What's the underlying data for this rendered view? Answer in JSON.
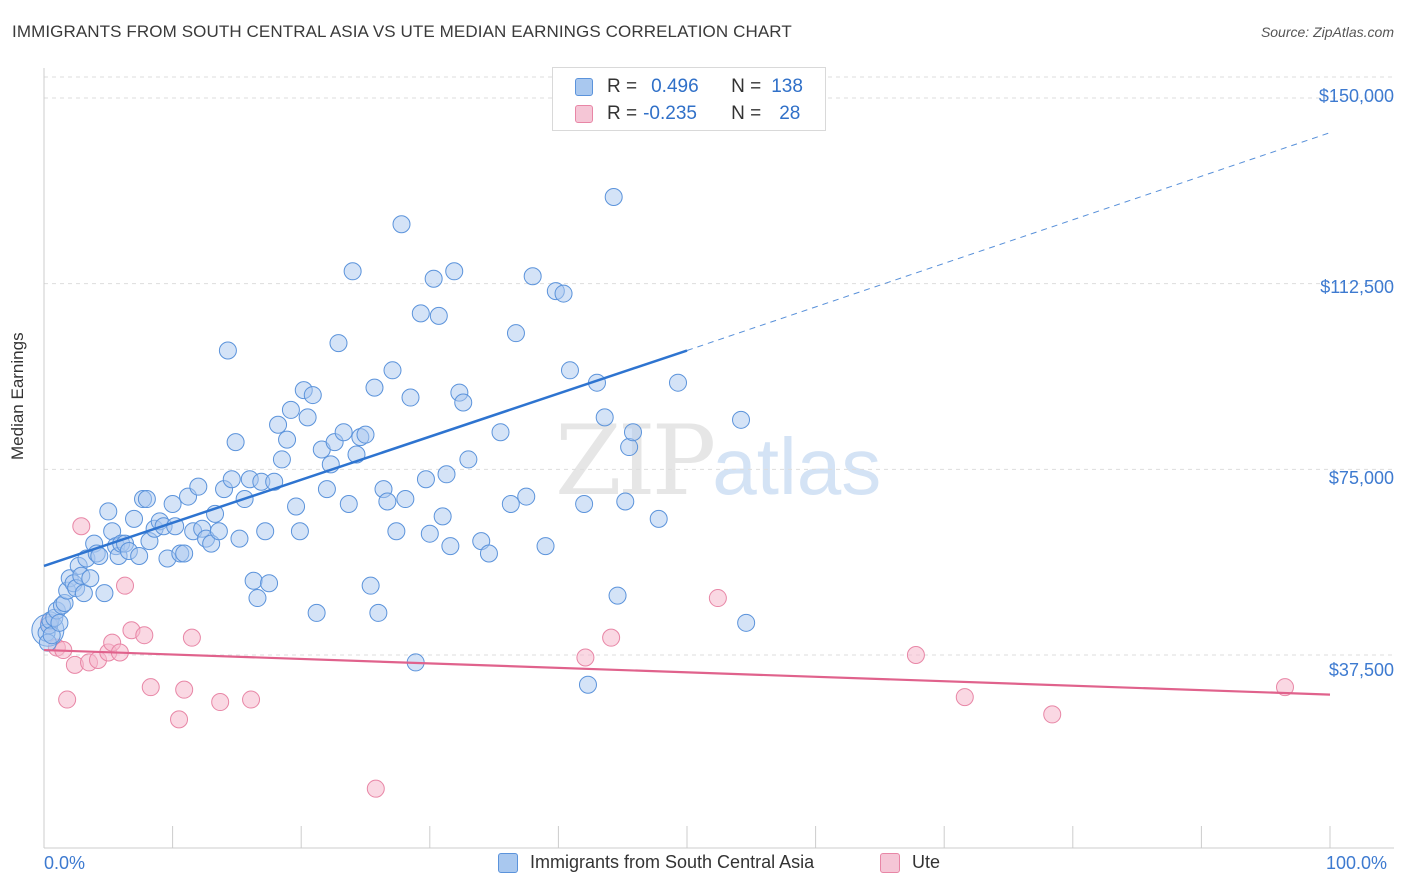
{
  "title": "IMMIGRANTS FROM SOUTH CENTRAL ASIA VS UTE MEDIAN EARNINGS CORRELATION CHART",
  "source": "Source: ZipAtlas.com",
  "watermark": {
    "zip": "ZIP",
    "atlas": "atlas"
  },
  "legend_top": {
    "rows": [
      {
        "r_label": "R =",
        "r_value": "0.496",
        "n_label": "N =",
        "n_value": "138"
      },
      {
        "r_label": "R =",
        "r_value": "-0.235",
        "n_label": "N =",
        "n_value": "28"
      }
    ]
  },
  "colors": {
    "blue_fill": "#a9c8ef",
    "blue_stroke": "#5b93db",
    "blue_line": "#2e74d0",
    "pink_fill": "#f5b8cc",
    "pink_stroke": "#e886a6",
    "pink_line": "#e0628c",
    "axis_text": "#3d7ad0",
    "grid": "#dddddd"
  },
  "chart_data": {
    "type": "scatter",
    "title": "IMMIGRANTS FROM SOUTH CENTRAL ASIA VS UTE MEDIAN EARNINGS CORRELATION CHART",
    "xlabel": "",
    "ylabel": "Median Earnings",
    "xlim": [
      0,
      100
    ],
    "ylim": [
      0,
      157500
    ],
    "x_tick_labels": [
      "0.0%",
      "100.0%"
    ],
    "y_ticks": [
      37500,
      75000,
      112500,
      150000
    ],
    "y_tick_labels": [
      "$37,500",
      "$75,000",
      "$112,500",
      "$150,000"
    ],
    "grid": true,
    "legend_position": "bottom",
    "series": [
      {
        "name": "Immigrants from South Central Asia",
        "color": "#a9c8ef",
        "R": 0.496,
        "N": 138,
        "trend": {
          "x": [
            0,
            50
          ],
          "y": [
            55500,
            99000
          ],
          "dashed_to": [
            100,
            143000
          ]
        },
        "points": [
          [
            0.2,
            42000
          ],
          [
            0.3,
            40000
          ],
          [
            0.4,
            43500
          ],
          [
            0.5,
            44500
          ],
          [
            0.6,
            41500
          ],
          [
            0.8,
            45000
          ],
          [
            1.0,
            46500
          ],
          [
            1.2,
            44000
          ],
          [
            1.4,
            47500
          ],
          [
            1.6,
            48000
          ],
          [
            1.8,
            50500
          ],
          [
            2.0,
            53000
          ],
          [
            2.3,
            52000
          ],
          [
            2.5,
            51000
          ],
          [
            2.7,
            55500
          ],
          [
            2.9,
            53500
          ],
          [
            3.1,
            50000
          ],
          [
            3.3,
            57000
          ],
          [
            3.6,
            53000
          ],
          [
            3.9,
            60000
          ],
          [
            4.1,
            58000
          ],
          [
            4.3,
            57500
          ],
          [
            4.7,
            50000
          ],
          [
            5.0,
            66500
          ],
          [
            5.3,
            62500
          ],
          [
            5.6,
            59500
          ],
          [
            5.8,
            57500
          ],
          [
            6.0,
            60000
          ],
          [
            6.3,
            60000
          ],
          [
            6.6,
            58500
          ],
          [
            7.0,
            65000
          ],
          [
            7.4,
            57500
          ],
          [
            7.7,
            69000
          ],
          [
            8.0,
            69000
          ],
          [
            8.2,
            60500
          ],
          [
            8.6,
            63000
          ],
          [
            9.0,
            64500
          ],
          [
            9.3,
            63500
          ],
          [
            9.6,
            57000
          ],
          [
            10.0,
            68000
          ],
          [
            10.2,
            63500
          ],
          [
            10.6,
            58000
          ],
          [
            10.9,
            58000
          ],
          [
            11.2,
            69500
          ],
          [
            11.6,
            62500
          ],
          [
            12.0,
            71500
          ],
          [
            12.3,
            63000
          ],
          [
            12.6,
            61000
          ],
          [
            13.0,
            60000
          ],
          [
            13.3,
            66000
          ],
          [
            13.6,
            62500
          ],
          [
            14.0,
            71000
          ],
          [
            14.3,
            99000
          ],
          [
            14.6,
            73000
          ],
          [
            14.9,
            80500
          ],
          [
            15.2,
            61000
          ],
          [
            15.6,
            69000
          ],
          [
            16.0,
            73000
          ],
          [
            16.3,
            52500
          ],
          [
            16.6,
            49000
          ],
          [
            16.9,
            72500
          ],
          [
            17.2,
            62500
          ],
          [
            17.5,
            52000
          ],
          [
            17.9,
            72500
          ],
          [
            18.2,
            84000
          ],
          [
            18.5,
            77000
          ],
          [
            18.9,
            81000
          ],
          [
            19.2,
            87000
          ],
          [
            19.6,
            67500
          ],
          [
            19.9,
            62500
          ],
          [
            20.2,
            91000
          ],
          [
            20.5,
            85500
          ],
          [
            20.9,
            90000
          ],
          [
            21.2,
            46000
          ],
          [
            21.6,
            79000
          ],
          [
            22.0,
            71000
          ],
          [
            22.3,
            76000
          ],
          [
            22.6,
            80500
          ],
          [
            22.9,
            100500
          ],
          [
            23.3,
            82500
          ],
          [
            23.7,
            68000
          ],
          [
            24.0,
            115000
          ],
          [
            24.3,
            78000
          ],
          [
            24.6,
            81500
          ],
          [
            25.0,
            82000
          ],
          [
            25.4,
            51500
          ],
          [
            25.7,
            91500
          ],
          [
            26.0,
            46000
          ],
          [
            26.4,
            71000
          ],
          [
            26.7,
            68500
          ],
          [
            27.1,
            95000
          ],
          [
            27.4,
            62500
          ],
          [
            27.8,
            124500
          ],
          [
            28.1,
            69000
          ],
          [
            28.5,
            89500
          ],
          [
            28.9,
            36000
          ],
          [
            29.3,
            106500
          ],
          [
            29.7,
            73000
          ],
          [
            30.0,
            62000
          ],
          [
            30.3,
            113500
          ],
          [
            30.7,
            106000
          ],
          [
            31.0,
            65500
          ],
          [
            31.3,
            74000
          ],
          [
            31.6,
            59500
          ],
          [
            31.9,
            115000
          ],
          [
            32.3,
            90500
          ],
          [
            32.6,
            88500
          ],
          [
            33.0,
            77000
          ],
          [
            34.0,
            60500
          ],
          [
            34.6,
            58000
          ],
          [
            35.5,
            82500
          ],
          [
            36.3,
            68000
          ],
          [
            36.7,
            102500
          ],
          [
            37.5,
            69500
          ],
          [
            38.0,
            114000
          ],
          [
            39.0,
            59500
          ],
          [
            39.8,
            111000
          ],
          [
            40.4,
            110500
          ],
          [
            40.9,
            95000
          ],
          [
            42.0,
            68000
          ],
          [
            42.3,
            31500
          ],
          [
            43.0,
            92500
          ],
          [
            43.6,
            85500
          ],
          [
            44.3,
            130000
          ],
          [
            44.6,
            49500
          ],
          [
            45.2,
            68500
          ],
          [
            45.5,
            79500
          ],
          [
            45.8,
            82500
          ],
          [
            47.8,
            65000
          ],
          [
            49.3,
            92500
          ],
          [
            54.2,
            85000
          ],
          [
            54.6,
            44000
          ]
        ]
      },
      {
        "name": "Ute",
        "color": "#f5b8cc",
        "R": -0.235,
        "N": 28,
        "trend": {
          "x": [
            0,
            100
          ],
          "y": [
            38500,
            29500
          ]
        },
        "points": [
          [
            0.4,
            44000
          ],
          [
            1.0,
            39000
          ],
          [
            1.5,
            38500
          ],
          [
            1.8,
            28500
          ],
          [
            2.4,
            35500
          ],
          [
            2.9,
            63500
          ],
          [
            3.5,
            36000
          ],
          [
            4.2,
            36500
          ],
          [
            5.0,
            38000
          ],
          [
            5.3,
            40000
          ],
          [
            5.9,
            38000
          ],
          [
            6.3,
            51500
          ],
          [
            6.8,
            42500
          ],
          [
            7.8,
            41500
          ],
          [
            8.3,
            31000
          ],
          [
            10.5,
            24500
          ],
          [
            10.9,
            30500
          ],
          [
            11.5,
            41000
          ],
          [
            13.7,
            28000
          ],
          [
            16.1,
            28500
          ],
          [
            25.8,
            10500
          ],
          [
            42.1,
            37000
          ],
          [
            44.1,
            41000
          ],
          [
            52.4,
            49000
          ],
          [
            67.8,
            37500
          ],
          [
            71.6,
            29000
          ],
          [
            78.4,
            25500
          ],
          [
            96.5,
            31000
          ]
        ]
      }
    ]
  },
  "axes": {
    "ylabel": "Median Earnings",
    "x_min_label": "0.0%",
    "x_max_label": "100.0%",
    "y_labels": [
      "$150,000",
      "$112,500",
      "$75,000",
      "$37,500"
    ]
  },
  "legend_bottom": {
    "series1": "Immigrants from South Central Asia",
    "series2": "Ute"
  }
}
